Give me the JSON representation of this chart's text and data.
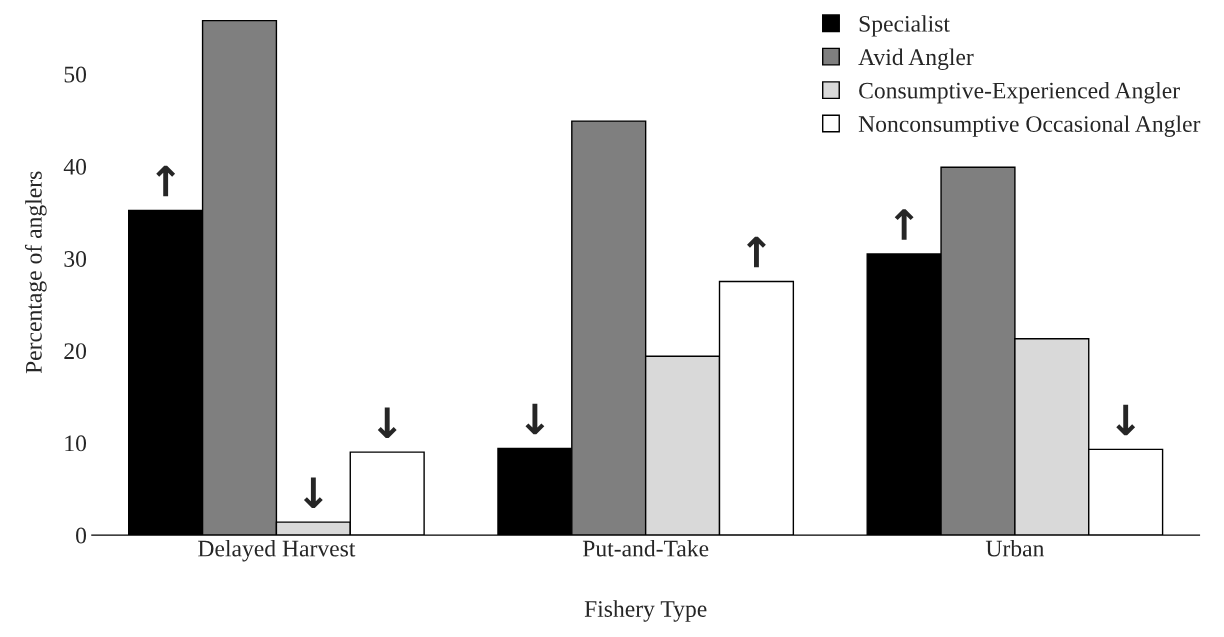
{
  "chart_data": {
    "type": "bar",
    "xlabel": "Fishery Type",
    "ylabel": "Percentage of anglers",
    "categories": [
      "Delayed Harvest",
      "Put-and-Take",
      "Urban"
    ],
    "series": [
      {
        "name": "Specialist",
        "color": "#000000",
        "values": [
          35.2,
          9.4,
          30.5
        ],
        "value_labels": [
          "↑",
          "↓",
          "↑"
        ]
      },
      {
        "name": "Avid Angler",
        "color": "#7f7f7f",
        "values": [
          55.8,
          44.9,
          39.9
        ],
        "value_labels": [
          null,
          null,
          null
        ]
      },
      {
        "name": "Consumptive-Experienced Angler",
        "color": "#d9d9d9",
        "values": [
          1.4,
          19.4,
          21.3
        ],
        "value_labels": [
          "↓",
          null,
          null
        ]
      },
      {
        "name": "Nonconsumptive Occasional Angler",
        "color": "#ffffff",
        "values": [
          9.0,
          27.5,
          9.3
        ],
        "value_labels": [
          "↓",
          "↑",
          "↓"
        ]
      }
    ],
    "ylim": [
      0,
      57
    ],
    "yticks": [
      0,
      10,
      20,
      30,
      40,
      50
    ],
    "grid": false,
    "legend": "top right"
  }
}
